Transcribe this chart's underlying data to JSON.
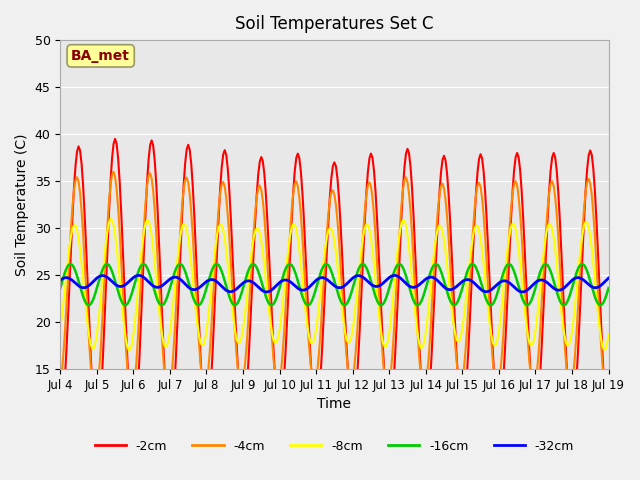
{
  "title": "Soil Temperatures Set C",
  "xlabel": "Time",
  "ylabel": "Soil Temperature (C)",
  "ylim": [
    15,
    50
  ],
  "annotation": "BA_met",
  "background_color": "#e8e8e8",
  "plot_bg_color": "#e8e8e8",
  "series_colors": {
    "-2cm": "#ff0000",
    "-4cm": "#ff8800",
    "-8cm": "#ffff00",
    "-16cm": "#00cc00",
    "-32cm": "#0000ff"
  },
  "line_widths": {
    "-2cm": 1.5,
    "-4cm": 1.5,
    "-8cm": 1.5,
    "-16cm": 1.8,
    "-32cm": 2.0
  },
  "x_tick_labels": [
    "Jul 4",
    "Jul 5",
    "Jul 6",
    "Jul 7",
    "Jul 8",
    "Jul 9",
    "Jul 10",
    "Jul 11",
    "Jul 12",
    "Jul 13",
    "Jul 14",
    "Jul 15",
    "Jul 16",
    "Jul 17",
    "Jul 18",
    "Jul 19"
  ],
  "x_tick_positions": [
    0,
    24,
    48,
    72,
    96,
    120,
    144,
    168,
    192,
    216,
    240,
    264,
    288,
    312,
    336,
    360
  ],
  "num_points": 361,
  "legend_labels": [
    "-2cm",
    "-4cm",
    "-8cm",
    "-16cm",
    "-32cm"
  ]
}
